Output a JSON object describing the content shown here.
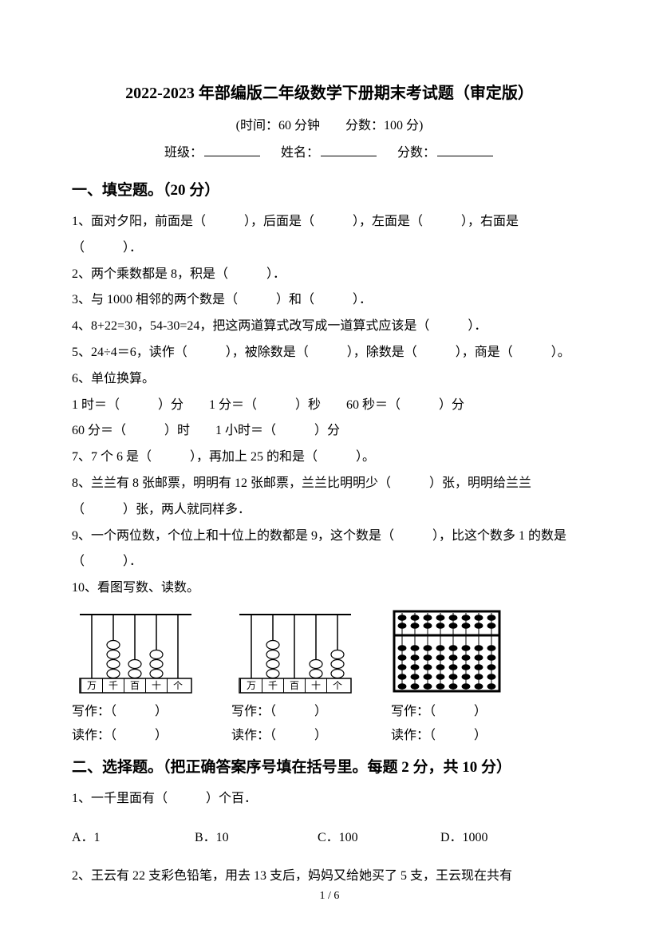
{
  "title": "2022-2023 年部编版二年级数学下册期末考试题（审定版）",
  "subtitle": "(时间：60 分钟　　分数：100 分)",
  "info": {
    "class_label": "班级：",
    "name_label": "姓名：",
    "score_label": "分数："
  },
  "section1_h": "一、填空题。（20 分）",
  "q1": "1、面对夕阳，前面是（　　　），后面是（　　　），左面是（　　　），右面是（　　　）．",
  "q2": "2、两个乘数都是 8，积是（　　　）．",
  "q3": "3、与 1000 相邻的两个数是（　　　）和（　　　）．",
  "q4": "4、8+22=30，54-30=24，把这两道算式改写成一道算式应该是（　　　）．",
  "q5": "5、24÷4＝6，读作（　　　），被除数是（　　　），除数是（　　　），商是（　　　）。",
  "q6h": "6、单位换算。",
  "q6a": "1 时＝（　　　）分　　1 分＝（　　　）秒　　60 秒＝（　　　）分",
  "q6b": "60 分＝（　　　）时　　1 小时＝（　　　）分",
  "q7": "7、7 个 6 是（　　　），再加上 25 的和是（　　　）。",
  "q8": "8、兰兰有 8 张邮票，明明有 12 张邮票，兰兰比明明少（　　　）张，明明给兰兰（　　　）张，两人就同样多．",
  "q9": "9、一个两位数，个位上和十位上的数都是 9，这个数是（　　　），比这个数多 1 的数是（　　　）．",
  "q10h": "10、看图写数、读数。",
  "abacus": {
    "labels": [
      "万",
      "千",
      "百",
      "十",
      "个"
    ],
    "a1_beads": [
      0,
      4,
      2,
      3,
      0
    ],
    "a2_beads": [
      0,
      4,
      0,
      2,
      3
    ],
    "write_label": "写作：（　　　）",
    "read_label": "读作：（　　　）",
    "colors": {
      "frame": "#000000",
      "bead": "#000000"
    }
  },
  "suanpan": {
    "top_beads": 2,
    "bottom_beads": 5,
    "rods": 8,
    "write_label": "写作：（　　　）",
    "read_label": "读作：（　　　）"
  },
  "section2_h": "二、选择题。（把正确答案序号填在括号里。每题 2 分，共 10 分）",
  "s2q1": "1、一千里面有（　　　）个百．",
  "s2q1_choices": {
    "A": "A．1",
    "B": "B．10",
    "C": "C．100",
    "D": "D．1000"
  },
  "s2q2": "2、王云有 22 支彩色铅笔，用去 13 支后，妈妈又给她买了 5 支，王云现在共有",
  "footer": "1 / 6"
}
